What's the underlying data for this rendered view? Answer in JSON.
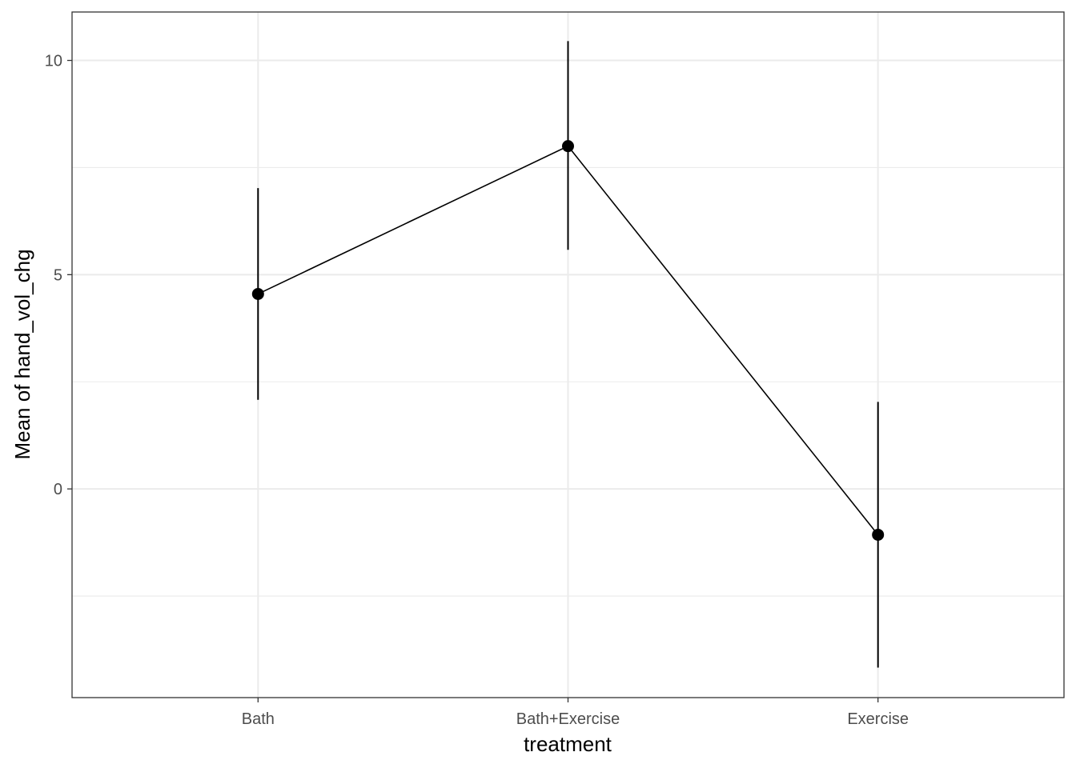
{
  "chart_data": {
    "type": "line",
    "title": "",
    "xlabel": "treatment",
    "ylabel": "Mean of hand_vol_chg",
    "categories": [
      "Bath",
      "Bath+Exercise",
      "Exercise"
    ],
    "series": [
      {
        "values": [
          4.55,
          8.0,
          -1.07
        ],
        "error_low": [
          2.08,
          5.58,
          -4.17
        ],
        "error_high": [
          7.02,
          10.45,
          2.03
        ]
      }
    ],
    "ylim": [
      -4.87,
      11.13
    ],
    "y_ticks": [
      0,
      5,
      10
    ],
    "y_tick_labels": [
      "0",
      "5",
      "10"
    ],
    "y_minor_ticks": [
      -2.5,
      2.5,
      7.5
    ],
    "grid": true,
    "legend": "none",
    "colors": {
      "line": "#000000",
      "point": "#000000",
      "grid": "#ebebeb",
      "panel_border": "#333333",
      "tick_label": "#4d4d4d"
    }
  }
}
